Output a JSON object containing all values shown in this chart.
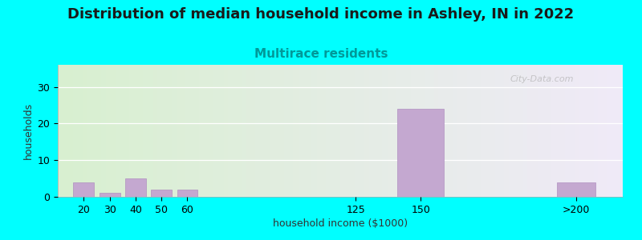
{
  "title": "Distribution of median household income in Ashley, IN in 2022",
  "subtitle": "Multirace residents",
  "xlabel": "household income ($1000)",
  "ylabel": "households",
  "background_color": "#00FFFF",
  "plot_bg_left": "#d8f0d0",
  "plot_bg_right": "#f0eaf8",
  "bar_color": "#c4a8d0",
  "bar_edge_color": "#b090c0",
  "categories": [
    "20",
    "30",
    "40",
    "50",
    "60",
    "125",
    "150",
    ">200"
  ],
  "values": [
    4,
    1,
    5,
    2,
    2,
    0,
    24,
    4
  ],
  "bar_positions": [
    20,
    30,
    40,
    50,
    60,
    125,
    150,
    210
  ],
  "bar_widths": [
    8,
    8,
    8,
    8,
    8,
    8,
    18,
    15
  ],
  "yticks": [
    0,
    10,
    20,
    30
  ],
  "ylim": [
    0,
    36
  ],
  "xlim": [
    10,
    228
  ],
  "title_fontsize": 13,
  "subtitle_fontsize": 11,
  "subtitle_color": "#009999",
  "axis_label_fontsize": 9,
  "tick_fontsize": 9,
  "watermark": "City-Data.com"
}
